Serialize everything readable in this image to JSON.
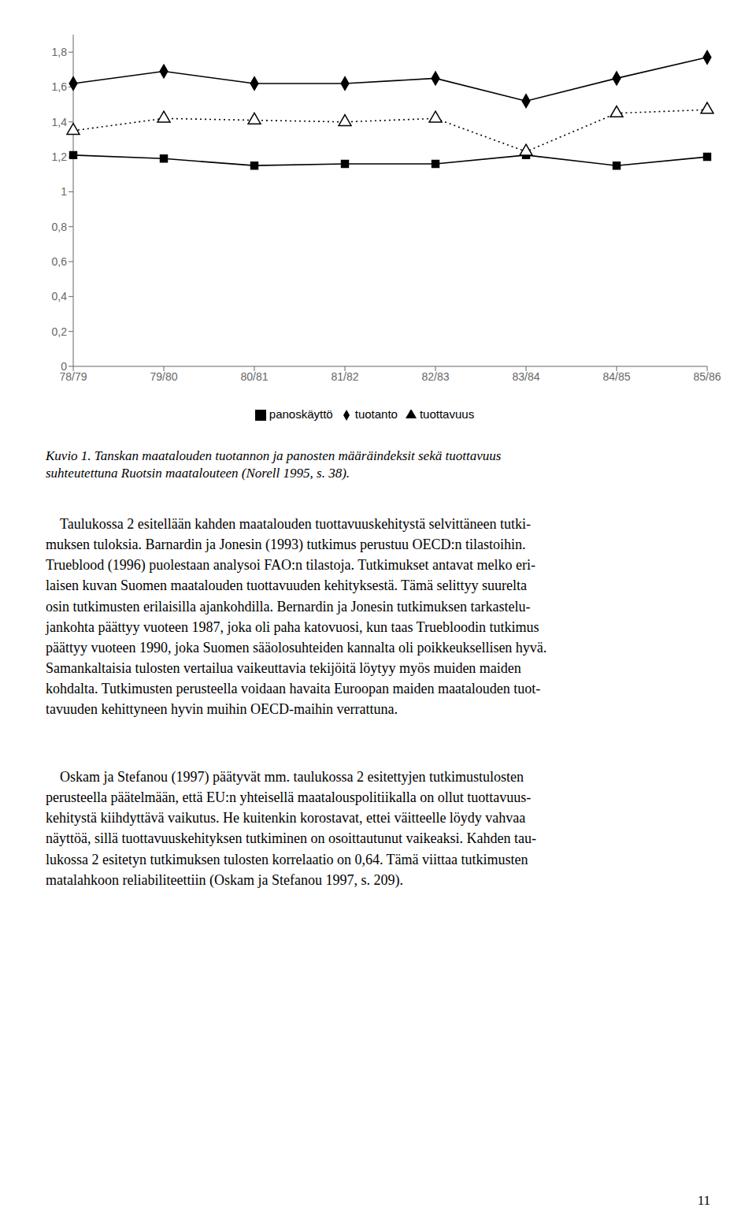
{
  "chart_data": {
    "type": "line",
    "categories": [
      "78/79",
      "79/80",
      "80/81",
      "81/82",
      "82/83",
      "83/84",
      "84/85",
      "85/86"
    ],
    "series": [
      {
        "name": "tuotanto",
        "color": "#000000",
        "marker": "diamond",
        "line_style": "solid",
        "values": [
          1.62,
          1.69,
          1.62,
          1.62,
          1.65,
          1.52,
          1.65,
          1.77
        ]
      },
      {
        "name": "panoskäyttö",
        "color": "#000000",
        "marker": "square",
        "line_style": "solid",
        "values": [
          1.21,
          1.19,
          1.15,
          1.16,
          1.16,
          1.21,
          1.15,
          1.2
        ]
      },
      {
        "name": "tuottavuus",
        "color": "#000000",
        "marker": "triangle",
        "line_style": "dotted",
        "values": [
          1.35,
          1.42,
          1.41,
          1.4,
          1.42,
          1.23,
          1.45,
          1.47
        ]
      }
    ],
    "ylim": [
      0,
      1.9
    ],
    "yticks": [
      0,
      {
        "value": 0.2,
        "label": "0,2"
      },
      {
        "value": 0.4,
        "label": "0,4"
      },
      {
        "value": 0.6,
        "label": "0,6"
      },
      {
        "value": 0.8,
        "label": "0,8"
      },
      1,
      {
        "value": 1.2,
        "label": "1,2"
      },
      {
        "value": 1.4,
        "label": "1,4"
      },
      {
        "value": 1.6,
        "label": "1,6"
      },
      {
        "value": 1.8,
        "label": "1,8"
      }
    ],
    "grid": false,
    "legend": "bottom",
    "annotations": [
      "Kuvio 1. Tanskan maatalouden tuotannon ja panosten määräindeksit sekä tuottavuus\nsuhteutettuna Ruotsin maatalouteen (Norell 1995, s. 38).",
      "    Taulukossa 2 esitellään kahden maatalouden tuottavuuskehitystä selvittäneen tutki-\nmuksen tuloksia. Barnardin ja Jonesin (1993) tutkimus perustuu OECD:n tilastoihin.\nTrueblood (1996) puolestaan analysoi FAO:n tilastoja. Tutkimukset antavat melko eri-\nlaisen kuvan Suomen maatalouden tuottavuuden kehityksestä. Tämä selittyy suurelta\nosin tutkimusten erilaisilla ajankohdilla. Bernardin ja Jonesin tutkimuksen tarkastelu-\njankohta päättyy vuoteen 1987, joka oli paha katovuosi, kun taas Truebloodin tutkimus\npäättyy vuoteen 1990, joka Suomen sääolosuhteiden kannalta oli poikkeuksellisen hyvä.\nSamankaltaisia tulosten vertailua vaikeuttavia tekijöitä löytyy myös muiden maiden\nkohdalta. Tutkimusten perusteella voidaan havaita Euroopan maiden maatalouden tuot-\ntavuuden kehittyneen hyvin muihin OECD-maihin verrattuna.",
      "    Oskam ja Stefanou (1997) päätyvät mm. taulukossa 2 esitettyjen tutkimustulosten\nperusteella päätelmään, että EU:n yhteisellä maatalouspolitiikalla on ollut tuottavuus-\nkehitystä kiihdyttävä vaikutus. He kuitenkin korostavat, ettei väitteelle löydy vahvaa\nnäyttöä, sillä tuottavuuskehityksen tutkiminen on osoittautunut vaikeaksi. Kahden tau-\nlukossa 2 esitetyn tutkimuksen tulosten korrelaatio on 0,64. Tämä viittaa tutkimusten\nmatalahkoon reliabiliteettiin (Oskam ja Stefanou 1997, s. 209).",
      "11"
    ]
  }
}
